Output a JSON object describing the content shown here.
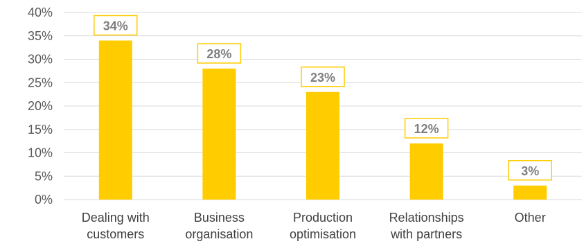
{
  "chart_data": {
    "type": "bar",
    "categories": [
      [
        "Dealing with",
        "customers"
      ],
      [
        "Business",
        "organisation"
      ],
      [
        "Production",
        "optimisation"
      ],
      [
        "Relationships",
        "with partners"
      ],
      [
        "Other"
      ]
    ],
    "values": [
      34,
      28,
      23,
      12,
      3
    ],
    "data_labels": [
      "34%",
      "28%",
      "23%",
      "12%",
      "3%"
    ],
    "ylim": [
      0,
      40
    ],
    "yticks": [
      0,
      5,
      10,
      15,
      20,
      25,
      30,
      35,
      40
    ],
    "ytick_labels": [
      "0%",
      "5%",
      "10%",
      "15%",
      "20%",
      "25%",
      "30%",
      "35%",
      "40%"
    ],
    "grid": true,
    "title": "",
    "xlabel": "",
    "ylabel": "",
    "colors": {
      "bar": "#FFCC00",
      "label_border": "#FFCC00",
      "grid": "#D9D9D9"
    }
  }
}
